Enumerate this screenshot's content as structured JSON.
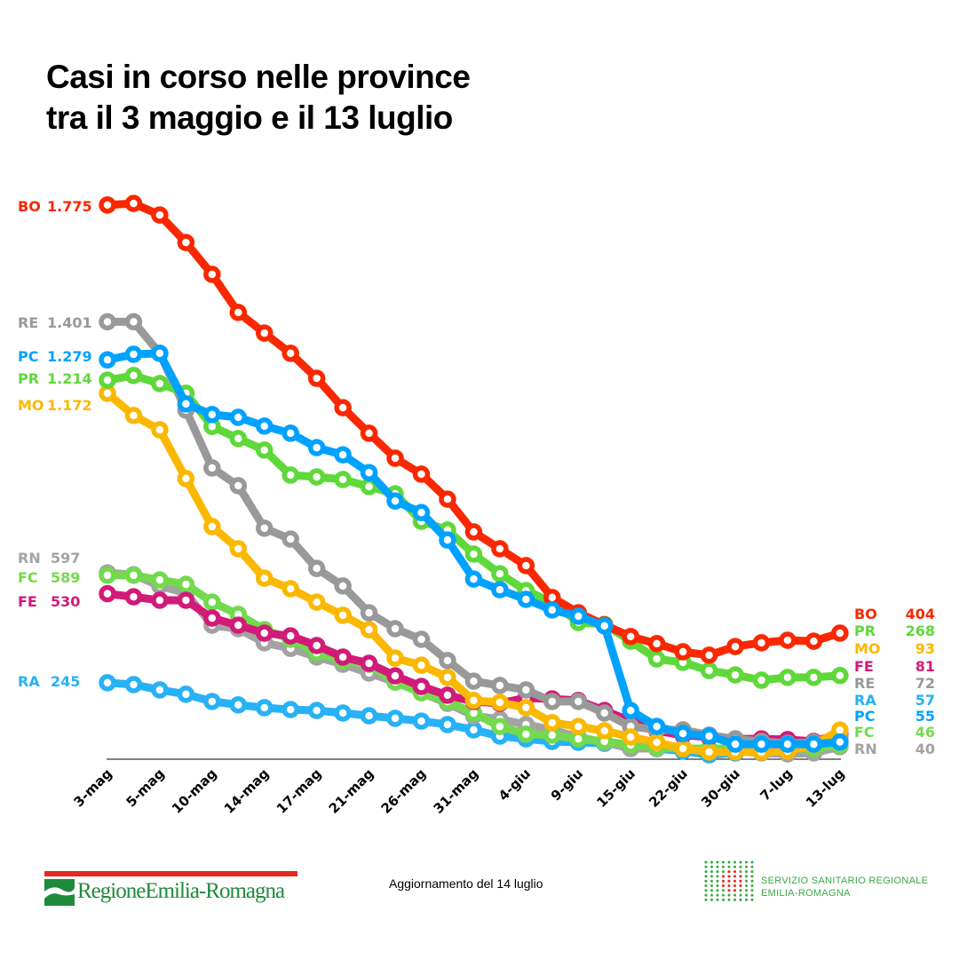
{
  "title_line1": "Casi in corso nelle province",
  "title_line2": "tra il 3 maggio e il 13 luglio",
  "update": "Aggiornamento del 14 luglio",
  "logo_left": {
    "text": "RegioneEmilia-Romagna"
  },
  "logo_right": {
    "line1": "SERVIZIO SANITARIO REGIONALE",
    "line2": "EMILIA-ROMAGNA"
  },
  "chart_data": {
    "type": "line",
    "title": "Casi in corso nelle province tra il 3 maggio e il 13 luglio",
    "xlabel": "",
    "ylabel": "",
    "ylim": [
      0,
      1800
    ],
    "grid": false,
    "x_tick_labels": [
      "3-mag",
      "5-mag",
      "10-mag",
      "14-mag",
      "17-mag",
      "21-mag",
      "26-mag",
      "31-mag",
      "4-giu",
      "9-giu",
      "15-giu",
      "22-giu",
      "30-giu",
      "7-lug",
      "13-lug"
    ],
    "n_points": 29,
    "series": [
      {
        "name": "RA",
        "color": "#27b1f7",
        "start_label": "245",
        "end_label": "57",
        "values": [
          245,
          239,
          222,
          208,
          185,
          174,
          165,
          159,
          156,
          148,
          139,
          131,
          122,
          111,
          94,
          74,
          65,
          57,
          54,
          51,
          43,
          34,
          26,
          14,
          20,
          28,
          34,
          34,
          57
        ]
      },
      {
        "name": "RN",
        "color": "#a3a3a3",
        "start_label": "597",
        "end_label": "40",
        "values": [
          597,
          591,
          555,
          532,
          429,
          418,
          373,
          355,
          327,
          304,
          276,
          247,
          213,
          179,
          139,
          128,
          111,
          94,
          71,
          54,
          34,
          34,
          37,
          26,
          26,
          20,
          17,
          20,
          40
        ]
      },
      {
        "name": "FC",
        "color": "#72da4c",
        "start_label": "589",
        "end_label": "46",
        "values": [
          589,
          589,
          574,
          560,
          503,
          464,
          415,
          384,
          341,
          316,
          304,
          247,
          213,
          185,
          148,
          105,
          80,
          77,
          65,
          57,
          46,
          37,
          34,
          34,
          34,
          34,
          34,
          34,
          46
        ]
      },
      {
        "name": "FE",
        "color": "#d21a79",
        "start_label": "530",
        "end_label": "81",
        "values": [
          530,
          520,
          509,
          509,
          452,
          429,
          404,
          395,
          364,
          327,
          307,
          267,
          233,
          205,
          185,
          179,
          196,
          193,
          188,
          156,
          122,
          91,
          77,
          71,
          65,
          65,
          63,
          57,
          81
        ]
      },
      {
        "name": "RE",
        "color": "#999999",
        "start_label": "1.401",
        "end_label": "72",
        "values": [
          1401,
          1401,
          1300,
          1118,
          933,
          876,
          740,
          705,
          611,
          555,
          469,
          418,
          384,
          316,
          250,
          236,
          222,
          185,
          185,
          148,
          105,
          94,
          94,
          77,
          65,
          57,
          51,
          54,
          72
        ]
      },
      {
        "name": "MO",
        "color": "#fbb800",
        "start_label": "1.172",
        "end_label": "93",
        "values": [
          1172,
          1101,
          1055,
          899,
          745,
          674,
          580,
          546,
          503,
          461,
          415,
          324,
          301,
          262,
          188,
          182,
          165,
          117,
          105,
          91,
          71,
          54,
          34,
          23,
          23,
          23,
          26,
          46,
          93
        ]
      },
      {
        "name": "PR",
        "color": "#5fd83a",
        "start_label": "1.214",
        "end_label": "268",
        "values": [
          1214,
          1229,
          1203,
          1172,
          1066,
          1027,
          990,
          910,
          904,
          896,
          873,
          850,
          762,
          734,
          657,
          594,
          540,
          503,
          438,
          432,
          378,
          321,
          310,
          284,
          270,
          253,
          262,
          262,
          268
        ]
      },
      {
        "name": "BO",
        "color": "#fa2800",
        "start_label": "1.775",
        "end_label": "404",
        "values": [
          1775,
          1780,
          1743,
          1655,
          1553,
          1431,
          1365,
          1300,
          1220,
          1126,
          1044,
          964,
          913,
          833,
          728,
          674,
          620,
          518,
          469,
          430,
          393,
          370,
          344,
          333,
          361,
          373,
          381,
          378,
          404
        ]
      },
      {
        "name": "PC",
        "color": "#00a2ff",
        "start_label": "1.279",
        "end_label": "55",
        "values": [
          1279,
          1297,
          1300,
          1138,
          1104,
          1095,
          1067,
          1044,
          998,
          975,
          918,
          827,
          790,
          702,
          577,
          543,
          512,
          478,
          458,
          427,
          156,
          105,
          82,
          74,
          48,
          48,
          48,
          48,
          55
        ]
      }
    ]
  }
}
